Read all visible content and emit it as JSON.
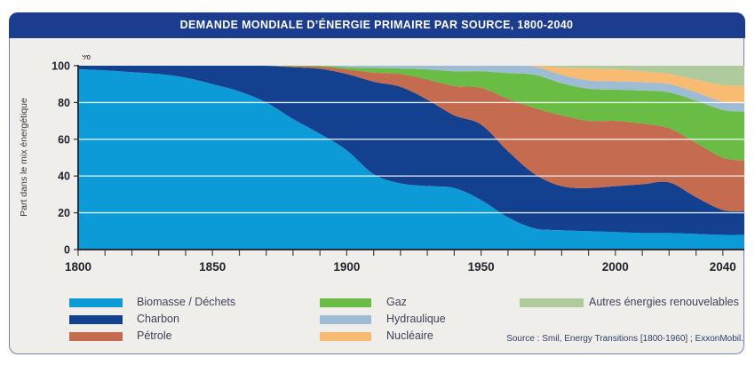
{
  "header": {
    "title": "DEMANDE MONDIALE D’ÉNERGIE PRIMAIRE PAR SOURCE, 1800-2040"
  },
  "source": "Source : Smil, Energy Transitions [1800-1960] ; ExxonMobil.",
  "legend": {
    "columns": [
      {
        "items": [
          {
            "label": "Biomasse / Déchets",
            "color": "#0d9bd8"
          },
          {
            "label": "Charbon",
            "color": "#14418f"
          },
          {
            "label": "Pétrole",
            "color": "#c56b50"
          }
        ]
      },
      {
        "items": [
          {
            "label": "Gaz",
            "color": "#69bd44"
          },
          {
            "label": "Hydraulique",
            "color": "#9ebcd4"
          },
          {
            "label": "Nucléaire",
            "color": "#f9bb72"
          }
        ]
      },
      {
        "items": [
          {
            "label": "Autres énergies renouvelables",
            "color": "#afcb9d"
          }
        ]
      }
    ]
  },
  "chart_data": {
    "type": "area",
    "stacked": true,
    "title": "DEMANDE MONDIALE D’ÉNERGIE PRIMAIRE PAR SOURCE, 1800-2040",
    "ylabel": "Part dans le mix énergétique",
    "y_unit": "%",
    "xlim": [
      1800,
      2048
    ],
    "ylim": [
      0,
      100
    ],
    "y_ticks": [
      0,
      20,
      40,
      60,
      80,
      100
    ],
    "x_labeled_ticks": [
      1800,
      1850,
      1900,
      1950,
      2000,
      2040
    ],
    "x_minor_ticks": {
      "from": 1800,
      "to": 2040,
      "step": 10
    },
    "gridlines_y": [
      20,
      40,
      60,
      80
    ],
    "legend_position": "bottom",
    "x": [
      1800,
      1810,
      1820,
      1830,
      1840,
      1850,
      1860,
      1870,
      1880,
      1890,
      1900,
      1910,
      1920,
      1930,
      1940,
      1950,
      1960,
      1970,
      1980,
      1990,
      2000,
      2010,
      2020,
      2030,
      2040,
      2048
    ],
    "series": [
      {
        "id": "biomasse",
        "name": "Biomasse / Déchets",
        "color": "#0d9bd8",
        "values": [
          98,
          97.5,
          96.5,
          95.5,
          93.5,
          90,
          86,
          80,
          71,
          63,
          54,
          41,
          36,
          34.5,
          33.5,
          27,
          17.5,
          11.5,
          10.5,
          10,
          9.5,
          9,
          9,
          8.5,
          8,
          8
        ]
      },
      {
        "id": "charbon",
        "name": "Charbon",
        "color": "#14418f",
        "values": [
          2,
          2.5,
          3.5,
          4.5,
          6.5,
          10,
          14,
          20,
          28.2,
          35.3,
          41.5,
          50.3,
          52.5,
          47,
          39.5,
          41,
          36,
          29.5,
          24,
          23.5,
          25,
          26.5,
          27.5,
          20,
          13.5,
          13
        ]
      },
      {
        "id": "petrole",
        "name": "Pétrole",
        "color": "#c56b50",
        "values": [
          0,
          0,
          0,
          0,
          0,
          0,
          0,
          0,
          0.5,
          1.2,
          2.5,
          5,
          7,
          11,
          16,
          20,
          28.5,
          36,
          38.5,
          36.5,
          35.5,
          33,
          29.5,
          29.5,
          28.5,
          27.5
        ]
      },
      {
        "id": "gaz",
        "name": "Gaz",
        "color": "#69bd44",
        "values": [
          0,
          0,
          0,
          0,
          0,
          0,
          0,
          0,
          0.3,
          0.5,
          1.2,
          2.5,
          3,
          5.5,
          8,
          9,
          14,
          18,
          17.5,
          17.5,
          17,
          18,
          19.5,
          23,
          26,
          26.5
        ]
      },
      {
        "id": "hydraulique",
        "name": "Hydraulique",
        "color": "#9ebcd4",
        "values": [
          0,
          0,
          0,
          0,
          0,
          0,
          0,
          0,
          0,
          0,
          0.8,
          1.2,
          1.5,
          2,
          3,
          3,
          4,
          4.5,
          4.5,
          4.5,
          4.5,
          4.5,
          4.5,
          4.5,
          4.5,
          4.5
        ]
      },
      {
        "id": "nucleaire",
        "name": "Nucléaire",
        "color": "#f9bb72",
        "values": [
          0,
          0,
          0,
          0,
          0,
          0,
          0,
          0,
          0,
          0,
          0,
          0,
          0,
          0,
          0,
          0,
          0,
          0.5,
          4,
          6.5,
          6.5,
          6,
          5.5,
          7,
          9,
          9.5
        ]
      },
      {
        "id": "autres",
        "name": "Autres énergies renouvelables",
        "color": "#afcb9d",
        "values": [
          0,
          0,
          0,
          0,
          0,
          0,
          0,
          0,
          0,
          0,
          0,
          0,
          0,
          0,
          0,
          0,
          0,
          0,
          1,
          1.5,
          2,
          3,
          4.5,
          7.5,
          10.5,
          11
        ]
      }
    ]
  }
}
